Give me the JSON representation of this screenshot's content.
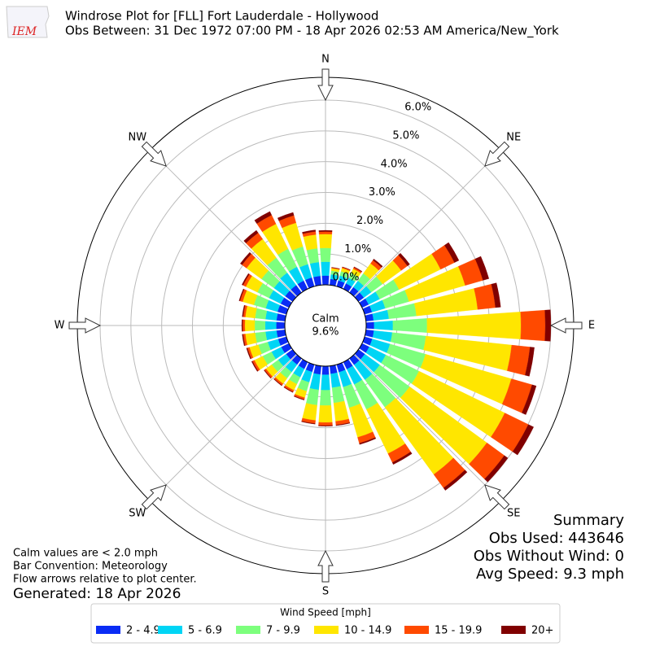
{
  "chart_data": {
    "type": "windrose",
    "title": "Windrose Plot for [FLL] Fort Lauderdale - Hollywood",
    "subtitle": "Obs Between: 31 Dec 1972 07:00 PM - 18 Apr 2026 02:53 AM America/New_York",
    "logo": "IEM",
    "directions": [
      "N",
      "NE",
      "E",
      "SE",
      "S",
      "SW",
      "W",
      "NW"
    ],
    "calm_label": "Calm",
    "calm_value": "9.6%",
    "categories": [
      null,
      null,
      null,
      null,
      null,
      null,
      null,
      null,
      null,
      null,
      null,
      null,
      null,
      null,
      null,
      null,
      null,
      null,
      null,
      null,
      null,
      null,
      null,
      null,
      null,
      null,
      null,
      null,
      null,
      null,
      null,
      null,
      null,
      null,
      null,
      null
    ],
    "ylim": [
      0,
      6.74
    ],
    "yticks": [
      {
        "value": 0,
        "label": "0.0%"
      },
      {
        "value": 1,
        "label": "1.0%"
      },
      {
        "value": 2,
        "label": "2.0%"
      },
      {
        "value": 3,
        "label": "3.0%"
      },
      {
        "value": 4,
        "label": "4.0%"
      },
      {
        "value": 5,
        "label": "5.0%"
      },
      {
        "value": 6,
        "label": "6.0%"
      }
    ],
    "grid": true,
    "legend_title": "Wind Speed [mph]",
    "series": [
      {
        "name": "2 - 4.9",
        "color": "#0a2cf5",
        "values": [
          0.3,
          0.2,
          0.2,
          0.2,
          0.22,
          0.22,
          0.24,
          0.25,
          0.25,
          0.26,
          0.26,
          0.26,
          0.26,
          0.26,
          0.26,
          0.26,
          0.26,
          0.26,
          0.28,
          0.28,
          0.25,
          0.25,
          0.25,
          0.26,
          0.28,
          0.28,
          0.28,
          0.28,
          0.28,
          0.3,
          0.3,
          0.3,
          0.3,
          0.3,
          0.3,
          0.3
        ]
      },
      {
        "name": "5 - 6.9",
        "color": "#00d5f5",
        "values": [
          0.45,
          0.15,
          0.17,
          0.2,
          0.25,
          0.3,
          0.4,
          0.45,
          0.5,
          0.61,
          0.6,
          0.6,
          0.6,
          0.6,
          0.6,
          0.55,
          0.5,
          0.45,
          0.5,
          0.5,
          0.35,
          0.3,
          0.3,
          0.32,
          0.35,
          0.35,
          0.36,
          0.36,
          0.36,
          0.4,
          0.42,
          0.45,
          0.5,
          0.5,
          0.45,
          0.45
        ]
      },
      {
        "name": "7 - 9.9",
        "color": "#7dff7d",
        "values": [
          0.45,
          0.12,
          0.14,
          0.18,
          0.3,
          0.45,
          0.7,
          0.8,
          0.9,
          1.11,
          1.1,
          1.2,
          1.2,
          1.2,
          1.1,
          0.9,
          0.7,
          0.5,
          0.5,
          0.5,
          0.3,
          0.25,
          0.25,
          0.26,
          0.32,
          0.32,
          0.34,
          0.34,
          0.34,
          0.4,
          0.42,
          0.5,
          0.6,
          0.65,
          0.6,
          0.45
        ]
      },
      {
        "name": "10 - 14.9",
        "color": "#ffe600",
        "values": [
          0.45,
          0.08,
          0.11,
          0.15,
          0.4,
          0.75,
          1.5,
          1.9,
          2.0,
          3.05,
          2.8,
          2.9,
          3.1,
          3.1,
          2.7,
          1.6,
          1.0,
          0.6,
          0.55,
          0.5,
          0.22,
          0.22,
          0.22,
          0.23,
          0.3,
          0.3,
          0.32,
          0.32,
          0.32,
          0.38,
          0.42,
          0.6,
          0.75,
          0.9,
          0.8,
          0.45
        ]
      },
      {
        "name": "15 - 19.9",
        "color": "#ff4a00",
        "values": [
          0.08,
          0.02,
          0.03,
          0.05,
          0.13,
          0.25,
          0.5,
          0.6,
          0.58,
          0.79,
          0.6,
          0.7,
          0.85,
          0.7,
          0.54,
          0.32,
          0.2,
          0.12,
          0.1,
          0.1,
          0.06,
          0.06,
          0.06,
          0.06,
          0.07,
          0.07,
          0.07,
          0.07,
          0.07,
          0.09,
          0.1,
          0.18,
          0.25,
          0.32,
          0.25,
          0.1
        ]
      },
      {
        "name": "20+",
        "color": "#800000",
        "values": [
          0.04,
          0.01,
          0.01,
          0.02,
          0.05,
          0.09,
          0.16,
          0.2,
          0.17,
          0.18,
          0.14,
          0.14,
          0.19,
          0.14,
          0.1,
          0.07,
          0.04,
          0.02,
          0.02,
          0.02,
          0.02,
          0.02,
          0.02,
          0.02,
          0.03,
          0.03,
          0.03,
          0.03,
          0.03,
          0.03,
          0.04,
          0.07,
          0.1,
          0.13,
          0.1,
          0.05
        ]
      }
    ],
    "notes": [
      "Calm values are < 2.0 mph",
      "Bar Convention: Meteorology",
      "Flow arrows relative to plot center."
    ],
    "generated": "Generated: 18 Apr 2026",
    "summary": [
      "Summary",
      "Obs Used: 443646",
      "Obs Without Wind: 0",
      "Avg Speed: 9.3 mph"
    ]
  }
}
